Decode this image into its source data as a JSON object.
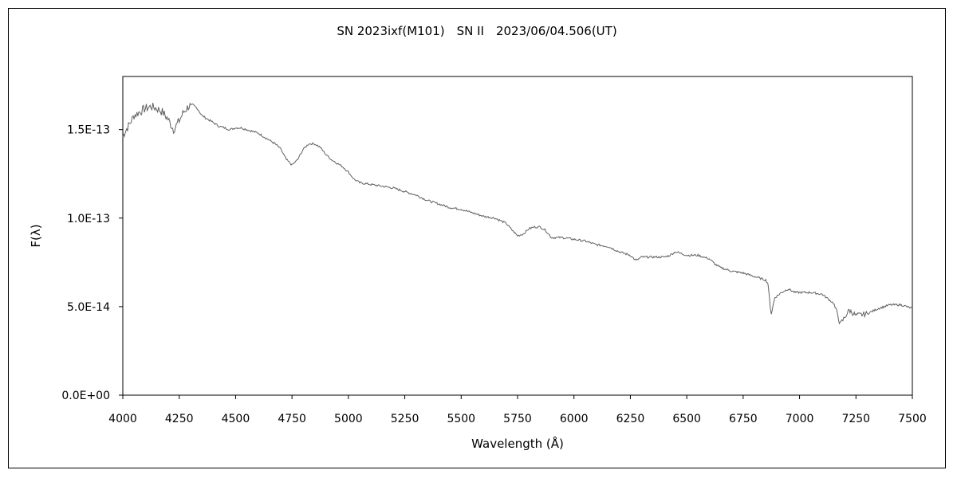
{
  "chart_data": {
    "type": "line",
    "title": "SN 2023ixf(M101)　SN II　2023/06/04.506(UT)",
    "xlabel": "Wavelength (Å)",
    "ylabel": "F(λ)",
    "xlim": [
      4000,
      7500
    ],
    "ylim": [
      0,
      1.8e-13
    ],
    "x_ticks": [
      4000,
      4250,
      4500,
      4750,
      5000,
      5250,
      5500,
      5750,
      6000,
      6250,
      6500,
      6750,
      7000,
      7250,
      7500
    ],
    "y_ticks": [
      0,
      5e-14,
      1e-13,
      1.5e-13
    ],
    "y_tick_labels": [
      "0.0E+00",
      "5.0E-14",
      "1.0E-13",
      "1.5E-13"
    ],
    "line_color": "#606060",
    "grid": false,
    "legend": "none",
    "series": [
      {
        "x": [
          4000,
          4010,
          4025,
          4050,
          4075,
          4100,
          4125,
          4150,
          4175,
          4200,
          4225,
          4250,
          4270,
          4290,
          4310,
          4330,
          4350,
          4375,
          4400,
          4425,
          4450,
          4475,
          4500,
          4525,
          4550,
          4575,
          4600,
          4625,
          4650,
          4675,
          4700,
          4725,
          4750,
          4775,
          4800,
          4825,
          4850,
          4875,
          4900,
          4925,
          4950,
          4975,
          5000,
          5025,
          5050,
          5100,
          5150,
          5200,
          5250,
          5300,
          5350,
          5400,
          5450,
          5500,
          5550,
          5600,
          5650,
          5700,
          5720,
          5750,
          5775,
          5800,
          5825,
          5850,
          5875,
          5900,
          5925,
          5950,
          6000,
          6050,
          6100,
          6150,
          6200,
          6250,
          6275,
          6300,
          6350,
          6400,
          6425,
          6450,
          6475,
          6500,
          6525,
          6550,
          6575,
          6600,
          6625,
          6650,
          6700,
          6750,
          6800,
          6850,
          6860,
          6870,
          6875,
          6890,
          6920,
          6950,
          6980,
          7000,
          7050,
          7100,
          7150,
          7170,
          7180,
          7200,
          7220,
          7250,
          7300,
          7350,
          7400,
          7450,
          7500
        ],
        "y": [
          1.46e-13,
          1.49e-13,
          1.52e-13,
          1.58e-13,
          1.6e-13,
          1.62e-13,
          1.63e-13,
          1.62e-13,
          1.6e-13,
          1.56e-13,
          1.5e-13,
          1.55e-13,
          1.6e-13,
          1.63e-13,
          1.64e-13,
          1.62e-13,
          1.58e-13,
          1.56e-13,
          1.54e-13,
          1.52e-13,
          1.51e-13,
          1.5e-13,
          1.51e-13,
          1.51e-13,
          1.5e-13,
          1.49e-13,
          1.48e-13,
          1.46e-13,
          1.44e-13,
          1.42e-13,
          1.39e-13,
          1.33e-13,
          1.3e-13,
          1.33e-13,
          1.39e-13,
          1.42e-13,
          1.42e-13,
          1.4e-13,
          1.36e-13,
          1.33e-13,
          1.31e-13,
          1.29e-13,
          1.26e-13,
          1.22e-13,
          1.2e-13,
          1.19e-13,
          1.18e-13,
          1.17e-13,
          1.15e-13,
          1.13e-13,
          1.1e-13,
          1.08e-13,
          1.06e-13,
          1.05e-13,
          1.03e-13,
          1.01e-13,
          1e-13,
          9.7e-14,
          9.4e-14,
          9e-14,
          9.1e-14,
          9.4e-14,
          9.5e-14,
          9.5e-14,
          9.3e-14,
          8.9e-14,
          8.9e-14,
          8.9e-14,
          8.8e-14,
          8.7e-14,
          8.5e-14,
          8.4e-14,
          8.1e-14,
          7.9e-14,
          7.6e-14,
          7.8e-14,
          7.8e-14,
          7.8e-14,
          7.9e-14,
          8.1e-14,
          8e-14,
          7.9e-14,
          7.9e-14,
          7.9e-14,
          7.8e-14,
          7.7e-14,
          7.4e-14,
          7.2e-14,
          7e-14,
          6.9e-14,
          6.7e-14,
          6.5e-14,
          6.3e-14,
          5e-14,
          4.6e-14,
          5.5e-14,
          5.8e-14,
          6e-14,
          5.8e-14,
          5.8e-14,
          5.8e-14,
          5.7e-14,
          5.2e-14,
          4.5e-14,
          4e-14,
          4.4e-14,
          4.8e-14,
          4.5e-14,
          4.6e-14,
          4.9e-14,
          5.1e-14,
          5.1e-14,
          4.9e-14
        ]
      }
    ]
  }
}
